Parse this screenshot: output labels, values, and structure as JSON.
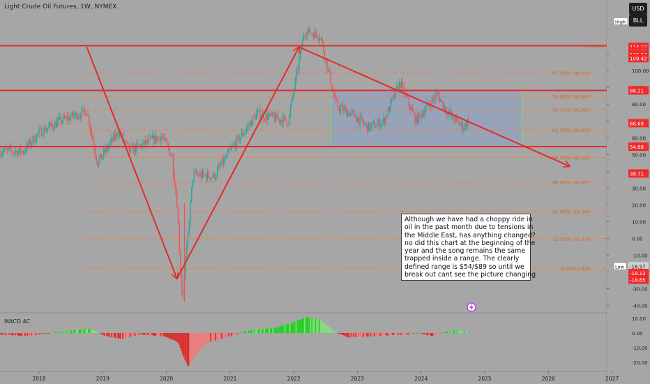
{
  "header": {
    "title": "Light Crude Oil Futures, 1W, NYMEX"
  },
  "buttons": {
    "currency": "USD",
    "unit": "BLL"
  },
  "price_labels": {
    "high": "114.13",
    "p2": "113.35",
    "p3": "109.94",
    "p4": "109.42",
    "res": "88.21",
    "last": "68.69",
    "sup": "54.68",
    "target": "38.71",
    "low": "-18.13",
    "low2": "-18.65",
    "lowval": "-16.57",
    "high_tag": "High",
    "low_tag": "Low"
  },
  "annotation": {
    "lines": [
      "Although we have had a choppy ride in",
      "oil in the past month due to tensions in",
      "the Middle East, has anything changed?",
      "no did this chart at the beginning of the",
      "year and the song remains the same",
      "trapped inside a range. The clearly",
      "defined range is $54/$89 so until we",
      "break out cant see the picture changing"
    ]
  },
  "indicator": {
    "label": "MACD 4C"
  },
  "chart_data": {
    "type": "candlestick",
    "title": "Light Crude Oil Futures, 1W, NYMEX",
    "price_axis": {
      "ylim": [
        -45,
        120
      ],
      "ticks": [
        -40,
        -30,
        -20,
        -10,
        0,
        10,
        20,
        30,
        40,
        50,
        60,
        70,
        80,
        90,
        100,
        110
      ]
    },
    "time_axis": {
      "ticks": [
        "2018",
        "2019",
        "2020",
        "2021",
        "2022",
        "2023",
        "2024",
        "2025",
        "2026",
        "2027"
      ]
    },
    "price_path": [
      [
        "2017-10",
        52
      ],
      [
        "2018-01",
        63
      ],
      [
        "2018-05",
        70
      ],
      [
        "2018-10",
        76
      ],
      [
        "2018-12",
        45
      ],
      [
        "2019-04",
        64
      ],
      [
        "2019-06",
        52
      ],
      [
        "2019-12",
        61
      ],
      [
        "2020-02",
        50
      ],
      [
        "2020-03",
        21
      ],
      [
        "2020-04",
        -37.6
      ],
      [
        "2020-06",
        38
      ],
      [
        "2020-10",
        37
      ],
      [
        "2021-01",
        52
      ],
      [
        "2021-06",
        74
      ],
      [
        "2021-12",
        70
      ],
      [
        "2022-03",
        123.7
      ],
      [
        "2022-06",
        121
      ],
      [
        "2022-09",
        79
      ],
      [
        "2022-12",
        74
      ],
      [
        "2023-03",
        66
      ],
      [
        "2023-06",
        70
      ],
      [
        "2023-09",
        93
      ],
      [
        "2023-12",
        70
      ],
      [
        "2024-04",
        86
      ],
      [
        "2024-06",
        75
      ],
      [
        "2024-09",
        66
      ],
      [
        "2024-10",
        71
      ]
    ],
    "horizontal_levels": [
      88.21,
      54.68
    ],
    "top_level_label": "100.00% (114.81)",
    "fib_levels": [
      {
        "label": "100.00% (114.81)",
        "value": 114.81
      },
      {
        "label": "87.50% (98.63)",
        "value": 98.63
      },
      {
        "label": "75.00% (84.69)",
        "value": 84.69
      },
      {
        "label": "70.70% (76.60)",
        "value": 76.6
      },
      {
        "label": "62.00% (64.63)",
        "value": 64.63
      },
      {
        "label": "50.00% (48.33)",
        "value": 48.33
      },
      {
        "label": "38.00% (33.47)",
        "value": 33.47
      },
      {
        "label": "25.00% (16.16)",
        "value": 16.16
      },
      {
        "label": "12.50% (-0.19)",
        "value": -0.19
      },
      {
        "label": "0.00% (-18)",
        "value": -18
      }
    ],
    "range_box": {
      "from": "2022-08",
      "to": "2025-08",
      "top": 88.21,
      "bottom": 54.68
    },
    "macd": {
      "ylim": [
        -25,
        12
      ],
      "ticks": [
        10,
        0,
        -10,
        -20
      ],
      "tick_labels": [
        "10.00",
        "0.00",
        "-10.00",
        "-20.00"
      ]
    },
    "colors": {
      "up": "#26a69a",
      "down": "#ef5350",
      "level": "#e32b2b",
      "fib": "#f07c3a",
      "range": "#8aa1c8",
      "macd_up": "#1ed41e",
      "macd_down": "#e02828"
    }
  }
}
